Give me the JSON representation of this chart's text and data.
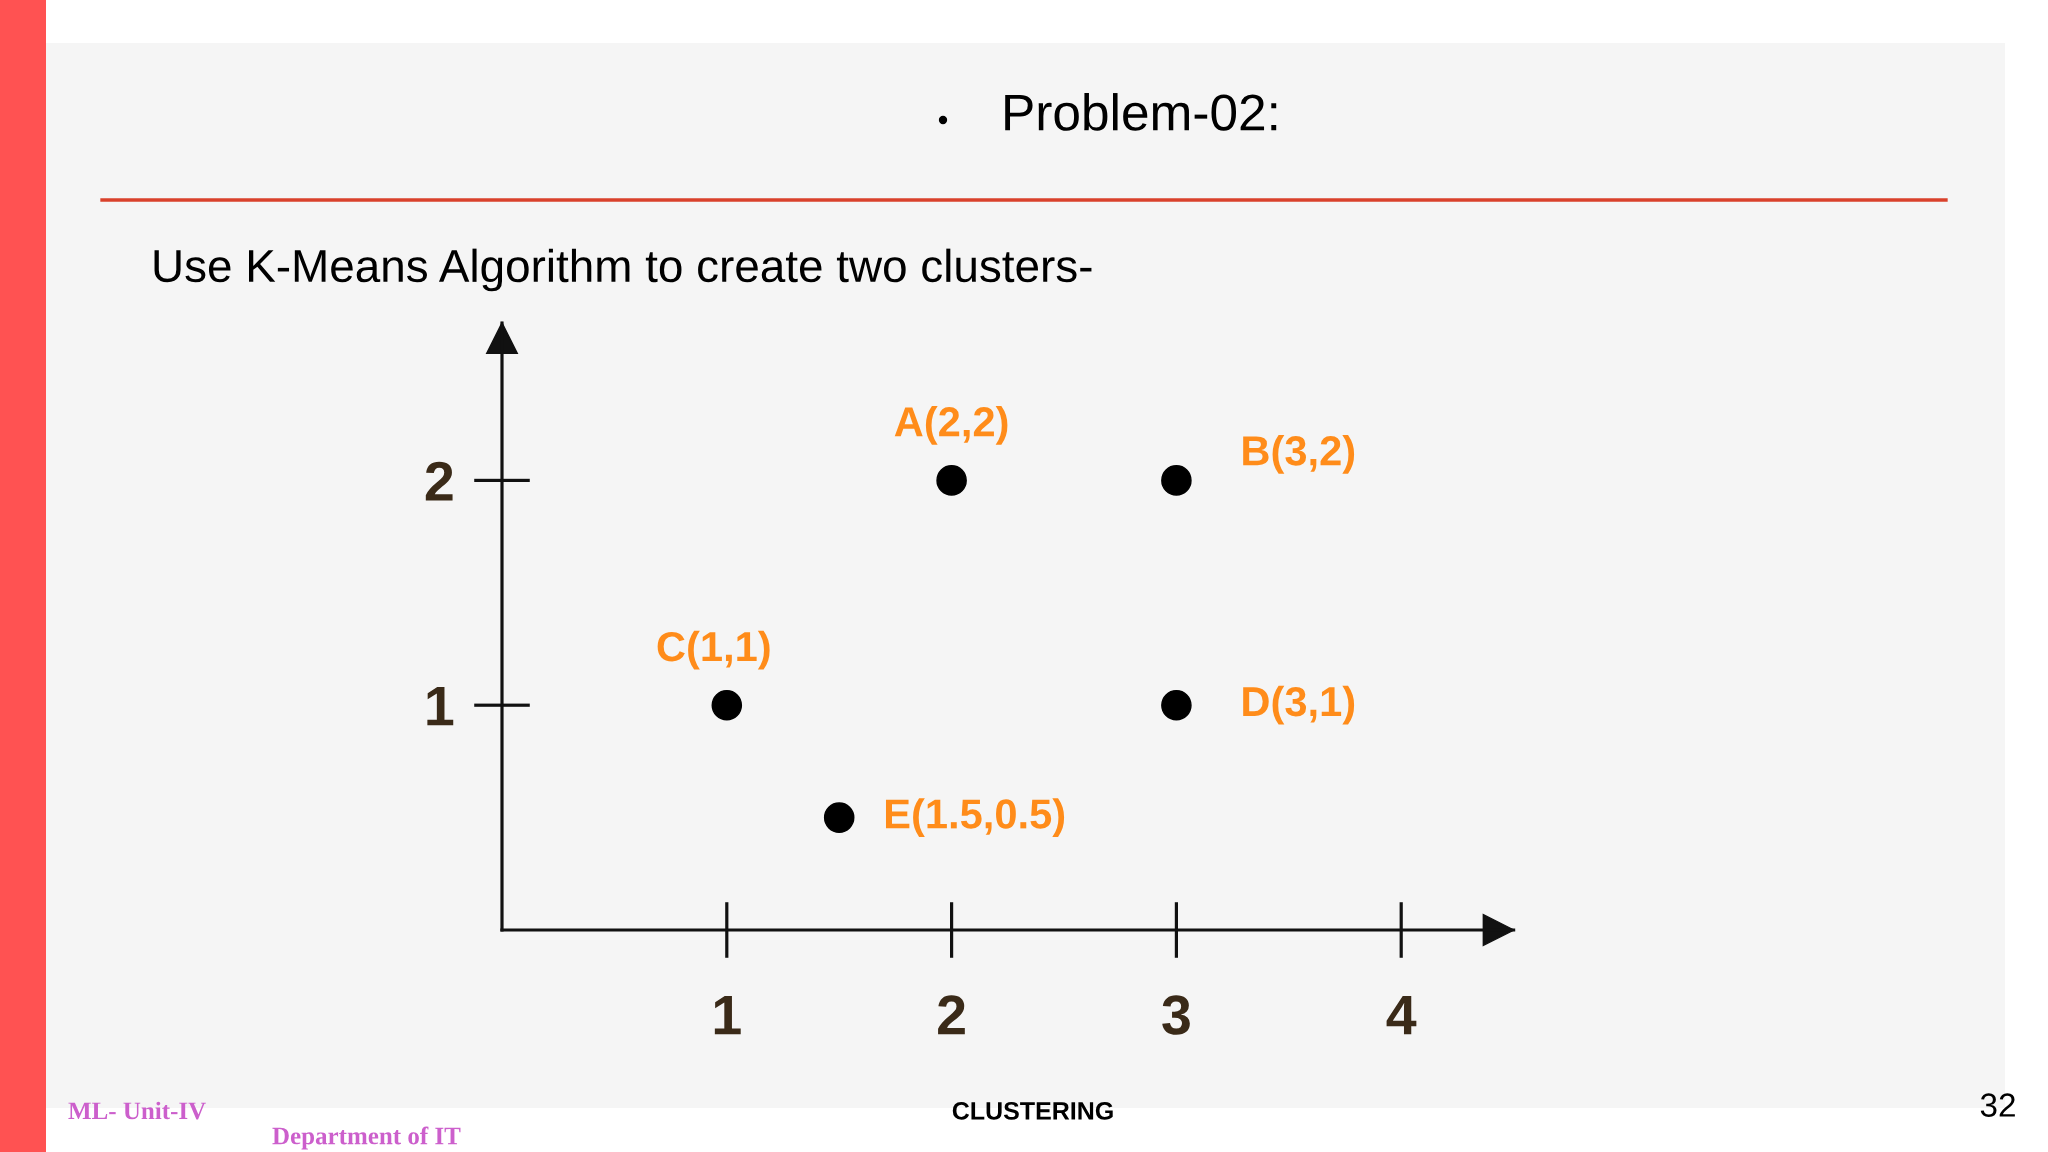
{
  "chart_data": {
    "type": "scatter",
    "title": "Problem-02:",
    "subtitle": "Use K-Means Algorithm to create two clusters-",
    "x": [
      2,
      3,
      1,
      3,
      1.5
    ],
    "values": [
      2,
      2,
      1,
      1,
      0.5
    ],
    "value_labels": [
      "A(2,2)",
      "B(3,2)",
      "C(1,1)",
      "D(3,1)",
      "E(1.5,0.5)"
    ],
    "color": "#000000",
    "marker": "circle",
    "xlim": [
      0,
      4.5
    ],
    "ylim": [
      0,
      2.7
    ],
    "xticks": [
      1,
      2,
      3,
      4
    ],
    "yticks": [
      1,
      2
    ],
    "annotations": [
      "ML- Unit-IV",
      "Department of IT",
      "CLUSTERING",
      "32"
    ]
  }
}
